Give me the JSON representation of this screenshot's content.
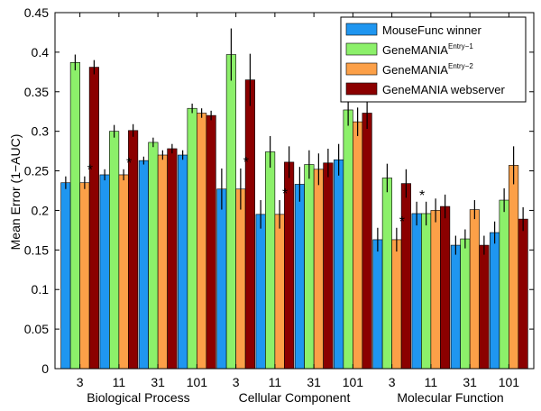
{
  "chart_data": {
    "type": "bar",
    "title": "",
    "ylabel": "Mean Error (1−AUC)",
    "xlabel": "",
    "ylim": [
      0,
      0.45
    ],
    "yticks": [
      0,
      0.05,
      0.1,
      0.15,
      0.2,
      0.25,
      0.3,
      0.35,
      0.4,
      0.45
    ],
    "ytick_labels": [
      "0",
      "0.05",
      "0.1",
      "0.15",
      "0.2",
      "0.25",
      "0.3",
      "0.35",
      "0.4",
      "0.45"
    ],
    "categories": [
      "3",
      "11",
      "31",
      "101",
      "3",
      "11",
      "31",
      "101",
      "3",
      "11",
      "31",
      "101"
    ],
    "groups": [
      {
        "label": "Biological Process",
        "span": [
          0,
          3
        ]
      },
      {
        "label": "Cellular Component",
        "span": [
          4,
          7
        ]
      },
      {
        "label": "Molecular Function",
        "span": [
          8,
          11
        ]
      }
    ],
    "series": [
      {
        "name": "MouseFunc winner",
        "color": "#1f96f0",
        "values": [
          0.235,
          0.245,
          0.263,
          0.27,
          0.227,
          0.195,
          0.233,
          0.264,
          0.163,
          0.196,
          0.156,
          0.172
        ],
        "errors": [
          0.008,
          0.007,
          0.005,
          0.006,
          0.026,
          0.018,
          0.022,
          0.02,
          0.015,
          0.015,
          0.012,
          0.014
        ]
      },
      {
        "name": "GeneMANIA",
        "sup": "Entry−1",
        "color": "#8cf06a",
        "values": [
          0.387,
          0.3,
          0.286,
          0.329,
          0.397,
          0.274,
          0.258,
          0.327,
          0.241,
          0.196,
          0.164,
          0.213
        ],
        "errors": [
          0.01,
          0.008,
          0.006,
          0.006,
          0.033,
          0.02,
          0.018,
          0.02,
          0.018,
          0.015,
          0.012,
          0.015
        ]
      },
      {
        "name": "GeneMANIA",
        "sup": "Entry−2",
        "color": "#fca048",
        "values": [
          0.235,
          0.245,
          0.27,
          0.323,
          0.227,
          0.195,
          0.252,
          0.312,
          0.163,
          0.2,
          0.201,
          0.257
        ],
        "errors": [
          0.008,
          0.007,
          0.006,
          0.006,
          0.026,
          0.018,
          0.02,
          0.018,
          0.015,
          0.015,
          0.012,
          0.024
        ]
      },
      {
        "name": "GeneMANIA webserver",
        "color": "#8b0000",
        "values": [
          0.381,
          0.301,
          0.278,
          0.32,
          0.365,
          0.261,
          0.26,
          0.323,
          0.234,
          0.205,
          0.156,
          0.189
        ],
        "errors": [
          0.009,
          0.008,
          0.006,
          0.006,
          0.033,
          0.02,
          0.018,
          0.02,
          0.018,
          0.015,
          0.012,
          0.015
        ]
      }
    ],
    "annotations": [
      {
        "text": "*",
        "category_index": 0,
        "series_index": 2
      },
      {
        "text": "*",
        "category_index": 1,
        "series_index": 2
      },
      {
        "text": "*",
        "category_index": 4,
        "series_index": 2
      },
      {
        "text": "*",
        "category_index": 5,
        "series_index": 2
      },
      {
        "text": "*",
        "category_index": 8,
        "series_index": 2
      },
      {
        "text": "*",
        "category_index": 9,
        "series_index": 0
      }
    ],
    "legend_position": "top-right"
  }
}
